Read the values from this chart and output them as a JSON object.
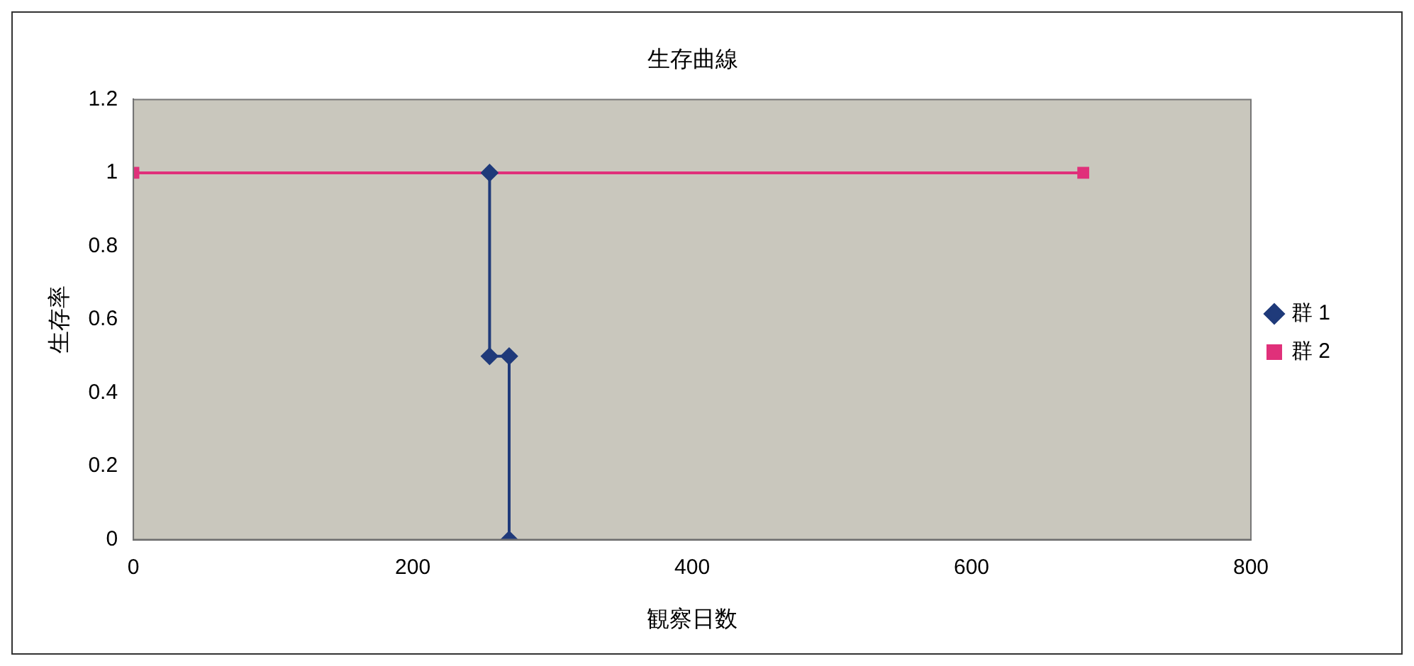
{
  "chart_data": {
    "type": "line",
    "title": "生存曲線",
    "xlabel": "観察日数",
    "ylabel": "生存率",
    "series": [
      {
        "name": "群 1",
        "color": "#1f3a7a",
        "marker": "diamond",
        "x": [
          255,
          255,
          269,
          269
        ],
        "values": [
          1,
          0.5,
          0.5,
          0
        ]
      },
      {
        "name": "群 2",
        "color": "#e0307a",
        "marker": "square",
        "x": [
          0,
          680
        ],
        "values": [
          1,
          1
        ]
      }
    ],
    "xlim": [
      0,
      800
    ],
    "xticks": [
      0,
      200,
      400,
      600,
      800
    ],
    "ylim": [
      0,
      1.2
    ],
    "yticks": [
      0,
      0.2,
      0.4,
      0.6,
      0.8,
      1,
      1.2
    ],
    "grid": false,
    "legend": "right"
  }
}
